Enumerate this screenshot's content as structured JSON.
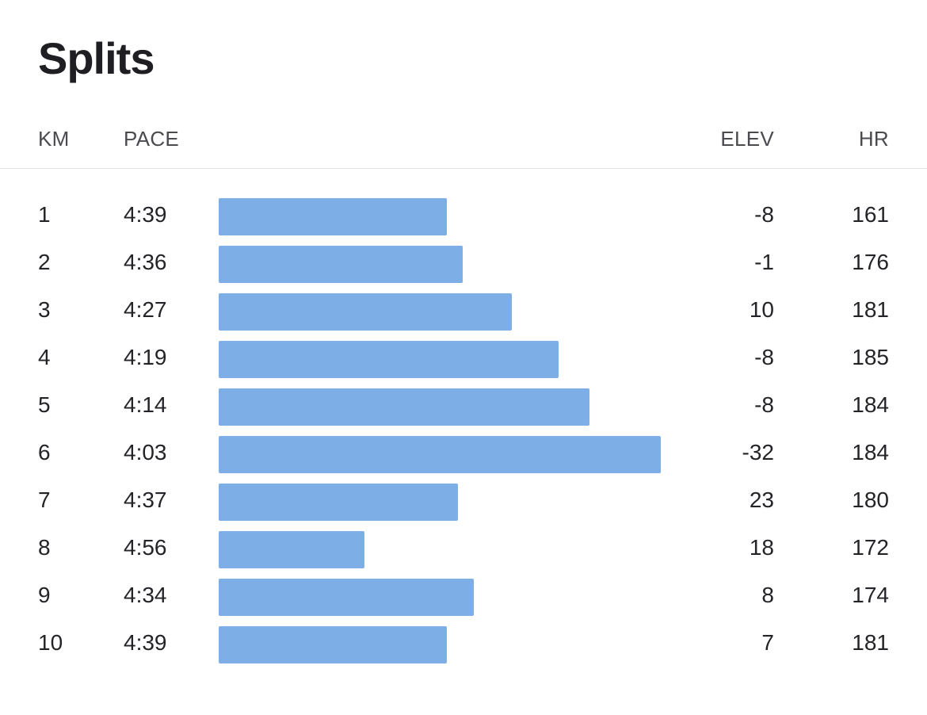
{
  "title": "Splits",
  "columns": {
    "km": "KM",
    "pace": "PACE",
    "elev": "ELEV",
    "hr": "HR"
  },
  "colors": {
    "bar": "#7eaee6"
  },
  "chart_data": {
    "type": "bar",
    "orientation": "horizontal",
    "categories": [
      "1",
      "2",
      "3",
      "4",
      "5",
      "6",
      "7",
      "8",
      "9",
      "10"
    ],
    "values": [
      "4:39",
      "4:36",
      "4:27",
      "4:19",
      "4:14",
      "4:03",
      "4:37",
      "4:56",
      "4:34",
      "4:39"
    ],
    "value_seconds_per_km": [
      279,
      276,
      267,
      259,
      254,
      243,
      277,
      296,
      274,
      279
    ],
    "note": "Bar length represents speed (faster pace = longer bar)",
    "xlabel": "PACE",
    "ylabel": "KM",
    "grid": false,
    "legend": "none"
  },
  "rows": [
    {
      "km": "1",
      "pace": "4:39",
      "elev": "-8",
      "hr": "161"
    },
    {
      "km": "2",
      "pace": "4:36",
      "elev": "-1",
      "hr": "176"
    },
    {
      "km": "3",
      "pace": "4:27",
      "elev": "10",
      "hr": "181"
    },
    {
      "km": "4",
      "pace": "4:19",
      "elev": "-8",
      "hr": "185"
    },
    {
      "km": "5",
      "pace": "4:14",
      "elev": "-8",
      "hr": "184"
    },
    {
      "km": "6",
      "pace": "4:03",
      "elev": "-32",
      "hr": "184"
    },
    {
      "km": "7",
      "pace": "4:37",
      "elev": "23",
      "hr": "180"
    },
    {
      "km": "8",
      "pace": "4:56",
      "elev": "18",
      "hr": "172"
    },
    {
      "km": "9",
      "pace": "4:34",
      "elev": "8",
      "hr": "174"
    },
    {
      "km": "10",
      "pace": "4:39",
      "elev": "7",
      "hr": "181"
    }
  ]
}
